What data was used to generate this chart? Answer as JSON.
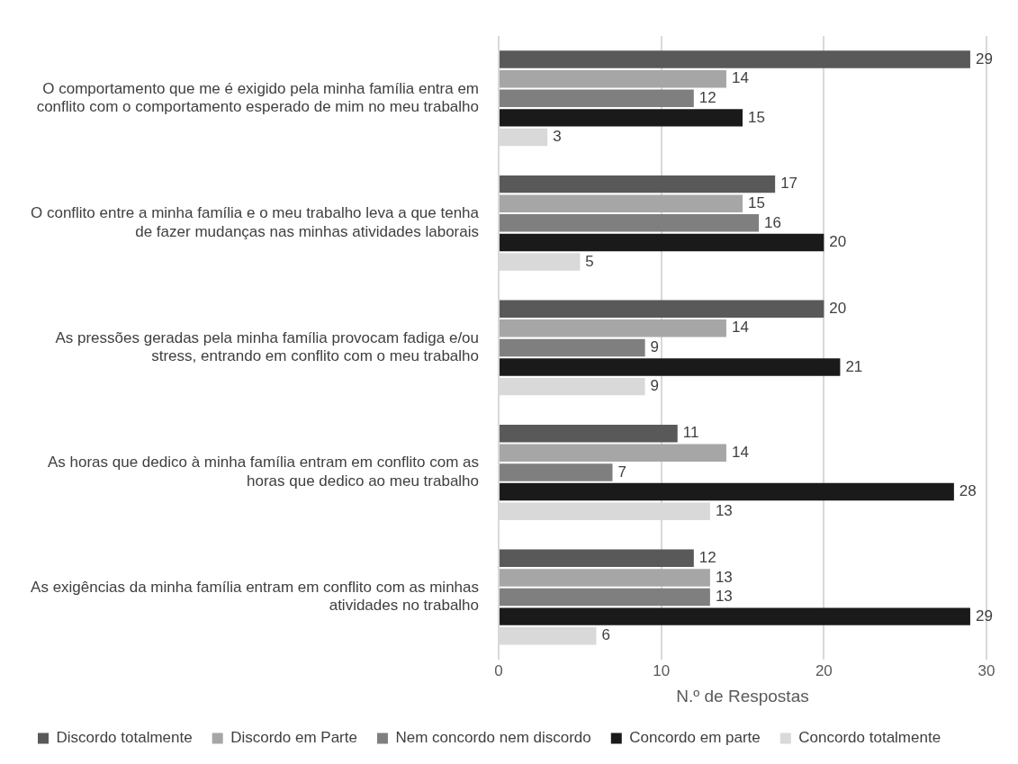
{
  "chart_data": {
    "type": "bar",
    "orientation": "horizontal",
    "xlabel": "N.º de Respostas",
    "categories": [
      "O comportamento que me é exigido pela minha família entra em conflito com o comportamento esperado de mim no meu trabalho",
      "O conflito entre a minha família e o meu trabalho leva a que tenha de fazer mudanças nas minhas atividades laborais",
      "As pressões geradas pela minha família provocam fadiga e/ou stress, entrando em conflito com o meu trabalho",
      "As horas que dedico à minha família entram em conflito com as horas que dedico ao meu trabalho",
      "As exigências da minha família entram em conflito com as minhas atividades no trabalho"
    ],
    "series": [
      {
        "name": "Discordo totalmente",
        "color": "#595959",
        "values": [
          29,
          17,
          20,
          11,
          12
        ]
      },
      {
        "name": "Discordo em Parte",
        "color": "#a6a6a6",
        "values": [
          14,
          15,
          14,
          14,
          13
        ]
      },
      {
        "name": "Nem concordo nem discordo",
        "color": "#7f7f7f",
        "values": [
          12,
          16,
          9,
          7,
          13
        ]
      },
      {
        "name": "Concordo em parte",
        "color": "#1a1a1a",
        "values": [
          15,
          20,
          21,
          28,
          29
        ]
      },
      {
        "name": "Concordo totalmente",
        "color": "#d9d9d9",
        "values": [
          3,
          5,
          9,
          13,
          6
        ]
      }
    ],
    "xlim": [
      0,
      30
    ],
    "xticks": [
      0,
      10,
      20,
      30
    ],
    "grid": "x",
    "legend": "bottom",
    "data_labels": true
  }
}
